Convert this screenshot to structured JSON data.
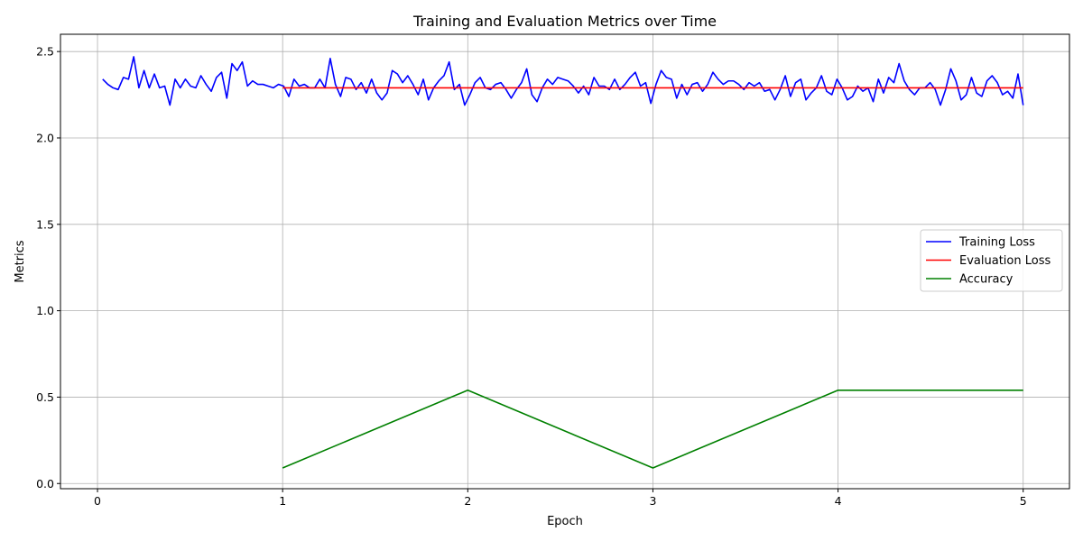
{
  "chart_data": {
    "type": "line",
    "title": "Training and Evaluation Metrics over Time",
    "xlabel": "Epoch",
    "ylabel": "Metrics",
    "xlim": [
      -0.2,
      5.25
    ],
    "ylim": [
      -0.03,
      2.6
    ],
    "xticks": [
      0,
      1,
      2,
      3,
      4,
      5
    ],
    "yticks": [
      0.0,
      0.5,
      1.0,
      1.5,
      2.0,
      2.5
    ],
    "xtick_labels": [
      "0",
      "1",
      "2",
      "3",
      "4",
      "5"
    ],
    "ytick_labels": [
      "0.0",
      "0.5",
      "1.0",
      "1.5",
      "2.0",
      "2.5"
    ],
    "grid": true,
    "legend_position": "center-right",
    "series": [
      {
        "name": "Training Loss",
        "color": "#0000ff",
        "x_start": 0.028,
        "x_end": 5.0,
        "values": [
          2.34,
          2.31,
          2.29,
          2.28,
          2.35,
          2.34,
          2.47,
          2.29,
          2.39,
          2.29,
          2.37,
          2.29,
          2.3,
          2.19,
          2.34,
          2.29,
          2.34,
          2.3,
          2.29,
          2.36,
          2.31,
          2.27,
          2.35,
          2.38,
          2.23,
          2.43,
          2.39,
          2.44,
          2.3,
          2.33,
          2.31,
          2.31,
          2.3,
          2.29,
          2.31,
          2.3,
          2.24,
          2.34,
          2.3,
          2.31,
          2.29,
          2.29,
          2.34,
          2.29,
          2.46,
          2.31,
          2.24,
          2.35,
          2.34,
          2.28,
          2.32,
          2.26,
          2.34,
          2.26,
          2.22,
          2.26,
          2.39,
          2.37,
          2.32,
          2.36,
          2.31,
          2.25,
          2.34,
          2.22,
          2.29,
          2.33,
          2.36,
          2.44,
          2.28,
          2.31,
          2.19,
          2.25,
          2.32,
          2.35,
          2.29,
          2.28,
          2.31,
          2.32,
          2.28,
          2.23,
          2.28,
          2.32,
          2.4,
          2.25,
          2.21,
          2.29,
          2.34,
          2.31,
          2.35,
          2.34,
          2.33,
          2.3,
          2.26,
          2.3,
          2.25,
          2.35,
          2.3,
          2.3,
          2.28,
          2.34,
          2.28,
          2.31,
          2.35,
          2.38,
          2.3,
          2.32,
          2.2,
          2.31,
          2.39,
          2.35,
          2.34,
          2.23,
          2.31,
          2.25,
          2.31,
          2.32,
          2.27,
          2.31,
          2.38,
          2.34,
          2.31,
          2.33,
          2.33,
          2.31,
          2.28,
          2.32,
          2.3,
          2.32,
          2.27,
          2.28,
          2.22,
          2.28,
          2.36,
          2.24,
          2.32,
          2.34,
          2.22,
          2.26,
          2.29,
          2.36,
          2.27,
          2.25,
          2.34,
          2.29,
          2.22,
          2.24,
          2.3,
          2.27,
          2.29,
          2.21,
          2.34,
          2.26,
          2.35,
          2.32,
          2.43,
          2.33,
          2.28,
          2.25,
          2.29,
          2.29,
          2.32,
          2.28,
          2.19,
          2.28,
          2.4,
          2.33,
          2.22,
          2.25,
          2.35,
          2.26,
          2.24,
          2.33,
          2.36,
          2.32,
          2.25,
          2.27,
          2.23,
          2.37,
          2.19
        ]
      },
      {
        "name": "Evaluation Loss",
        "color": "#ff0000",
        "x": [
          1,
          2,
          3,
          4,
          5
        ],
        "values": [
          2.29,
          2.29,
          2.29,
          2.29,
          2.29
        ]
      },
      {
        "name": "Accuracy",
        "color": "#008000",
        "x": [
          1,
          2,
          3,
          4,
          5
        ],
        "values": [
          0.09,
          0.54,
          0.09,
          0.54,
          0.54
        ]
      }
    ]
  }
}
